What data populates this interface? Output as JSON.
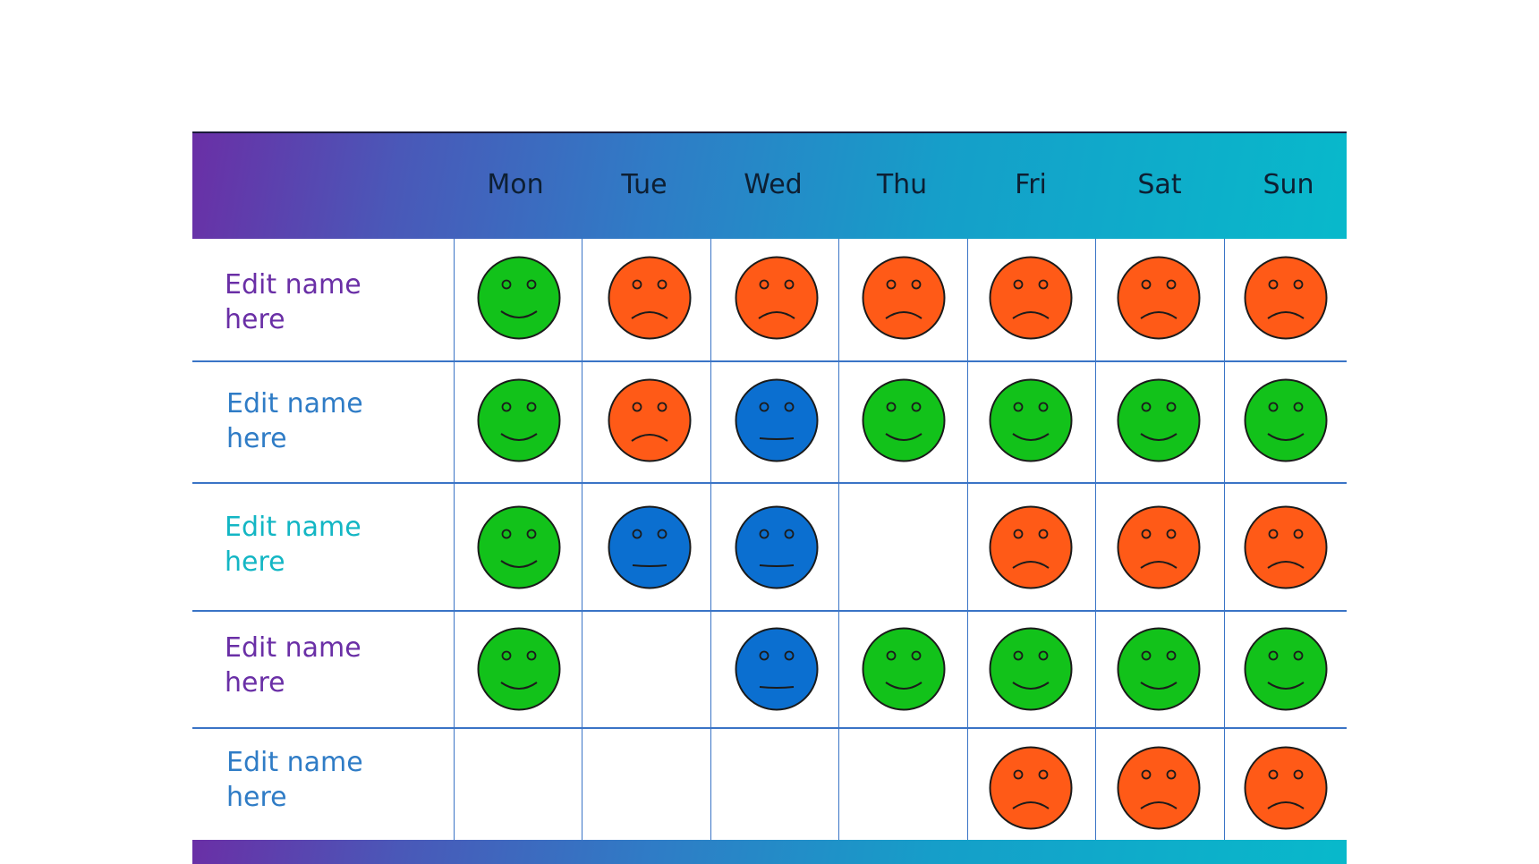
{
  "days": [
    "Mon",
    "Tue",
    "Wed",
    "Thu",
    "Fri",
    "Sat",
    "Sun"
  ],
  "colors": {
    "happy": "#12c21a",
    "sad": "#ff5a17",
    "neutral": "#0b6fd0",
    "name_purple": "#6a2fa6",
    "name_blue": "#2f7cc6",
    "name_teal": "#13b6c4"
  },
  "rows": [
    {
      "name": "Edit name here",
      "color_key": "name_purple",
      "moods": [
        "happy",
        "sad",
        "sad",
        "sad",
        "sad",
        "sad",
        "sad"
      ]
    },
    {
      "name": "Edit name here",
      "color_key": "name_blue",
      "moods": [
        "happy",
        "sad",
        "neutral",
        "happy",
        "happy",
        "happy",
        "happy"
      ]
    },
    {
      "name": "Edit name here",
      "color_key": "name_teal",
      "moods": [
        "happy",
        "neutral",
        "neutral",
        "",
        "sad",
        "sad",
        "sad"
      ]
    },
    {
      "name": "Edit name here",
      "color_key": "name_purple",
      "moods": [
        "happy",
        "",
        "neutral",
        "happy",
        "happy",
        "happy",
        "happy"
      ]
    },
    {
      "name": "Edit name here",
      "color_key": "name_blue",
      "moods": [
        "",
        "",
        "",
        "",
        "sad",
        "sad",
        "sad"
      ]
    }
  ]
}
